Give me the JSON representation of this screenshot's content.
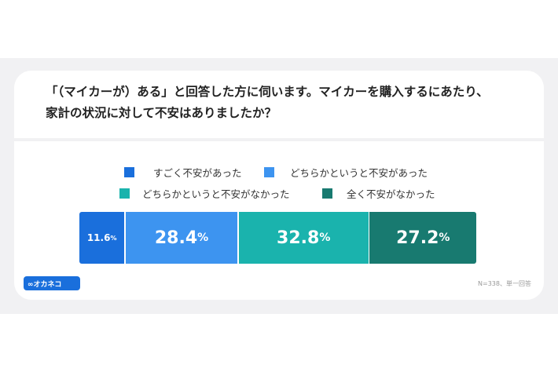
{
  "title": [
    "「（マイカーが）ある」と回答した方に伺います。マイカーを購入するにあたり、",
    "家計の状況に対して不安はありましたか？"
  ],
  "chart_data": {
    "type": "bar",
    "stacked": true,
    "orientation": "horizontal",
    "unit": "%",
    "series": [
      {
        "name": "すごく不安があった",
        "value": 11.6,
        "color": "#1a6fdc"
      },
      {
        "name": "どちらかというと不安があった",
        "value": 28.4,
        "color": "#3d94f0"
      },
      {
        "name": "どちらかというと不安がなかった",
        "value": 32.8,
        "color": "#1ab3ad"
      },
      {
        "name": "全く不安がなかった",
        "value": 27.2,
        "color": "#187a70"
      }
    ],
    "legend": "top"
  },
  "labels": [
    "11.6",
    "28.4",
    "32.8",
    "27.2"
  ],
  "percent_sign": "%",
  "logo": "∞オカネコ",
  "note": "N=338、単一回答"
}
